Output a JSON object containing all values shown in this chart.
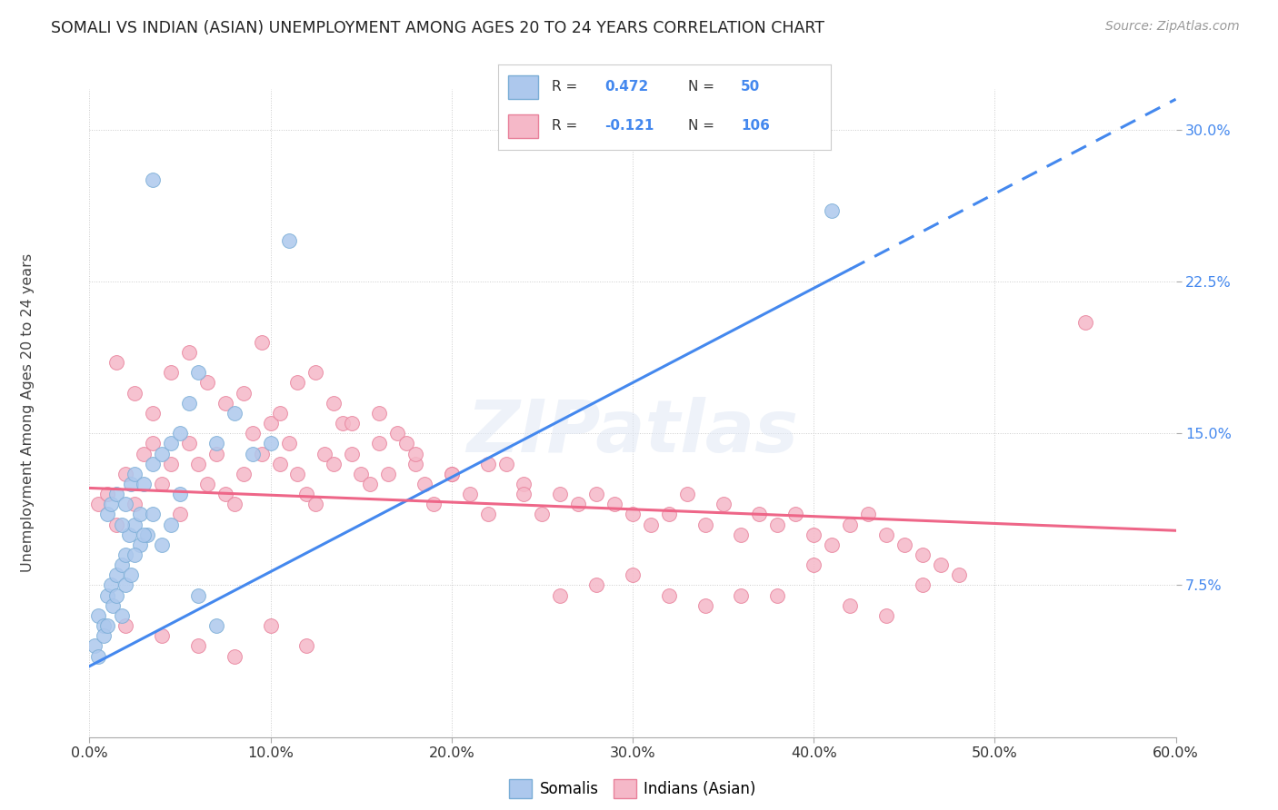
{
  "title": "SOMALI VS INDIAN (ASIAN) UNEMPLOYMENT AMONG AGES 20 TO 24 YEARS CORRELATION CHART",
  "source": "Source: ZipAtlas.com",
  "ylabel_label": "Unemployment Among Ages 20 to 24 years",
  "somali_R": 0.472,
  "somali_N": 50,
  "indian_R": -0.121,
  "indian_N": 106,
  "somali_color": "#adc8ed",
  "somali_edge": "#7aadd6",
  "indian_color": "#f5b8c8",
  "indian_edge": "#e8809a",
  "somali_trend_color": "#4488ee",
  "indian_trend_color": "#ee6688",
  "x_min": 0.0,
  "x_max": 60.0,
  "y_min": 0.0,
  "y_max": 32.0,
  "x_ticks": [
    0,
    10,
    20,
    30,
    40,
    50,
    60
  ],
  "y_ticks": [
    7.5,
    15.0,
    22.5,
    30.0
  ],
  "somali_trend_x0": 0.0,
  "somali_trend_y0": 3.5,
  "somali_trend_x1": 60.0,
  "somali_trend_y1": 31.5,
  "somali_solid_end": 42.0,
  "indian_trend_x0": 0.0,
  "indian_trend_y0": 12.3,
  "indian_trend_x1": 60.0,
  "indian_trend_y1": 10.2,
  "somali_dots_x": [
    0.5,
    0.8,
    1.0,
    1.2,
    1.5,
    1.8,
    2.0,
    2.2,
    2.5,
    2.8,
    1.0,
    1.2,
    1.5,
    1.8,
    2.0,
    2.3,
    2.5,
    2.8,
    3.0,
    3.2,
    3.5,
    4.0,
    4.5,
    5.0,
    5.5,
    6.0,
    7.0,
    8.0,
    9.0,
    10.0,
    0.3,
    0.5,
    0.8,
    1.0,
    1.3,
    1.5,
    1.8,
    2.0,
    2.3,
    2.5,
    3.0,
    3.5,
    4.0,
    4.5,
    5.0,
    6.0,
    7.0,
    3.5,
    11.0,
    41.0
  ],
  "somali_dots_y": [
    6.0,
    5.5,
    7.0,
    7.5,
    8.0,
    8.5,
    9.0,
    10.0,
    10.5,
    9.5,
    11.0,
    11.5,
    12.0,
    10.5,
    11.5,
    12.5,
    13.0,
    11.0,
    12.5,
    10.0,
    13.5,
    14.0,
    14.5,
    15.0,
    16.5,
    18.0,
    14.5,
    16.0,
    14.0,
    14.5,
    4.5,
    4.0,
    5.0,
    5.5,
    6.5,
    7.0,
    6.0,
    7.5,
    8.0,
    9.0,
    10.0,
    11.0,
    9.5,
    10.5,
    12.0,
    7.0,
    5.5,
    27.5,
    24.5,
    26.0
  ],
  "indian_dots_x": [
    0.5,
    1.0,
    1.5,
    2.0,
    2.5,
    3.0,
    3.5,
    4.0,
    4.5,
    5.0,
    5.5,
    6.0,
    6.5,
    7.0,
    7.5,
    8.0,
    8.5,
    9.0,
    9.5,
    10.0,
    10.5,
    11.0,
    11.5,
    12.0,
    12.5,
    13.0,
    13.5,
    14.0,
    14.5,
    15.0,
    15.5,
    16.0,
    16.5,
    17.0,
    17.5,
    18.0,
    18.5,
    19.0,
    20.0,
    21.0,
    22.0,
    23.0,
    24.0,
    25.0,
    26.0,
    27.0,
    28.0,
    29.0,
    30.0,
    31.0,
    32.0,
    33.0,
    34.0,
    35.0,
    36.0,
    37.0,
    38.0,
    39.0,
    40.0,
    41.0,
    42.0,
    43.0,
    44.0,
    45.0,
    46.0,
    47.0,
    48.0,
    55.0,
    1.5,
    2.5,
    3.5,
    4.5,
    5.5,
    6.5,
    7.5,
    8.5,
    9.5,
    10.5,
    11.5,
    12.5,
    13.5,
    14.5,
    16.0,
    18.0,
    20.0,
    22.0,
    24.0,
    26.0,
    28.0,
    30.0,
    32.0,
    34.0,
    36.0,
    38.0,
    40.0,
    42.0,
    44.0,
    46.0,
    2.0,
    4.0,
    6.0,
    8.0,
    10.0,
    12.0
  ],
  "indian_dots_y": [
    11.5,
    12.0,
    10.5,
    13.0,
    11.5,
    14.0,
    14.5,
    12.5,
    13.5,
    11.0,
    14.5,
    13.5,
    12.5,
    14.0,
    12.0,
    11.5,
    13.0,
    15.0,
    14.0,
    15.5,
    13.5,
    14.5,
    13.0,
    12.0,
    11.5,
    14.0,
    13.5,
    15.5,
    14.0,
    13.0,
    12.5,
    14.5,
    13.0,
    15.0,
    14.5,
    13.5,
    12.5,
    11.5,
    13.0,
    12.0,
    11.0,
    13.5,
    12.5,
    11.0,
    12.0,
    11.5,
    12.0,
    11.5,
    11.0,
    10.5,
    11.0,
    12.0,
    10.5,
    11.5,
    10.0,
    11.0,
    10.5,
    11.0,
    10.0,
    9.5,
    10.5,
    11.0,
    10.0,
    9.5,
    9.0,
    8.5,
    8.0,
    20.5,
    18.5,
    17.0,
    16.0,
    18.0,
    19.0,
    17.5,
    16.5,
    17.0,
    19.5,
    16.0,
    17.5,
    18.0,
    16.5,
    15.5,
    16.0,
    14.0,
    13.0,
    13.5,
    12.0,
    7.0,
    7.5,
    8.0,
    7.0,
    6.5,
    7.0,
    7.0,
    8.5,
    6.5,
    6.0,
    7.5,
    5.5,
    5.0,
    4.5,
    4.0,
    5.5,
    4.5
  ]
}
